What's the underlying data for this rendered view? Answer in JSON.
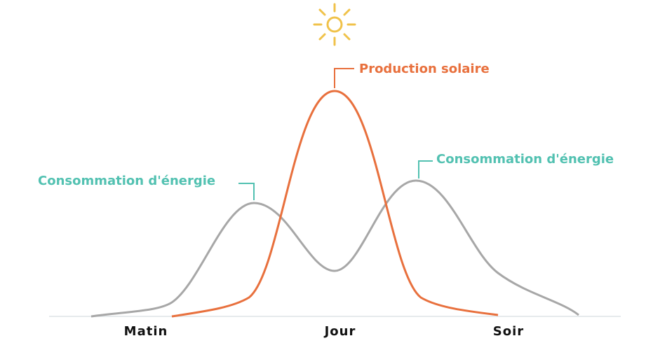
{
  "production_label": "Production solaire",
  "consumption_labels": [
    "Consommation d'énergie",
    "Consommation d'énergie"
  ],
  "time_labels": [
    "Matin",
    "Jour",
    "Soir"
  ]
}
